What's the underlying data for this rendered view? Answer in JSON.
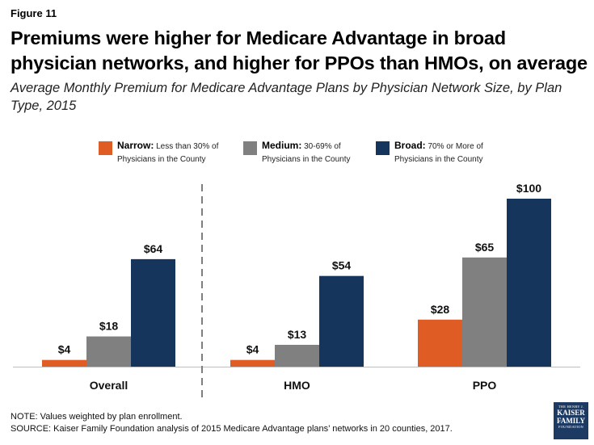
{
  "figure_label": "Figure 11",
  "title": "Premiums were higher for Medicare Advantage in broad physician networks, and higher for PPOs than HMOs, on average",
  "subtitle": "Average Monthly Premium for Medicare Advantage Plans by Physician Network Size, by Plan Type, 2015",
  "legend": [
    {
      "bold": "Narrow:",
      "line1": " Less than 30% of",
      "line2": "Physicians in the County",
      "color": "#e05c25"
    },
    {
      "bold": "Medium:",
      "line1": " 30-69% of",
      "line2": "Physicians in the County",
      "color": "#808080"
    },
    {
      "bold": "Broad:",
      "line1": " 70% or More of",
      "line2": "Physicians in the County",
      "color": "#15355c"
    }
  ],
  "chart_data": {
    "type": "bar",
    "title": "Premiums were higher for Medicare Advantage in broad physician networks, and higher for PPOs than HMOs, on average",
    "subtitle": "Average Monthly Premium for Medicare Advantage Plans by Physician Network Size, by Plan Type, 2015",
    "categories": [
      "Overall",
      "HMO",
      "PPO"
    ],
    "series": [
      {
        "name": "Narrow",
        "values": [
          4,
          4,
          28
        ],
        "labels": [
          "$4",
          "$4",
          "$28"
        ],
        "color": "#e05c25"
      },
      {
        "name": "Medium",
        "values": [
          18,
          13,
          65
        ],
        "labels": [
          "$18",
          "$13",
          "$65"
        ],
        "color": "#808080"
      },
      {
        "name": "Broad",
        "values": [
          64,
          54,
          100
        ],
        "labels": [
          "$64",
          "$54",
          "$100"
        ],
        "color": "#15355c"
      }
    ],
    "ylim": [
      0,
      100
    ],
    "grid": false,
    "legend_position": "top",
    "divider_after_category": "Overall"
  },
  "note": "NOTE: Values weighted by plan enrollment.",
  "source": "SOURCE: Kaiser Family Foundation  analysis of 2015 Medicare Advantage plans’ networks in 20 counties, 2017.",
  "logo": {
    "line1": "THE HENRY J.",
    "line2": "KAISER",
    "line3": "FAMILY",
    "line4": "FOUNDATION"
  }
}
